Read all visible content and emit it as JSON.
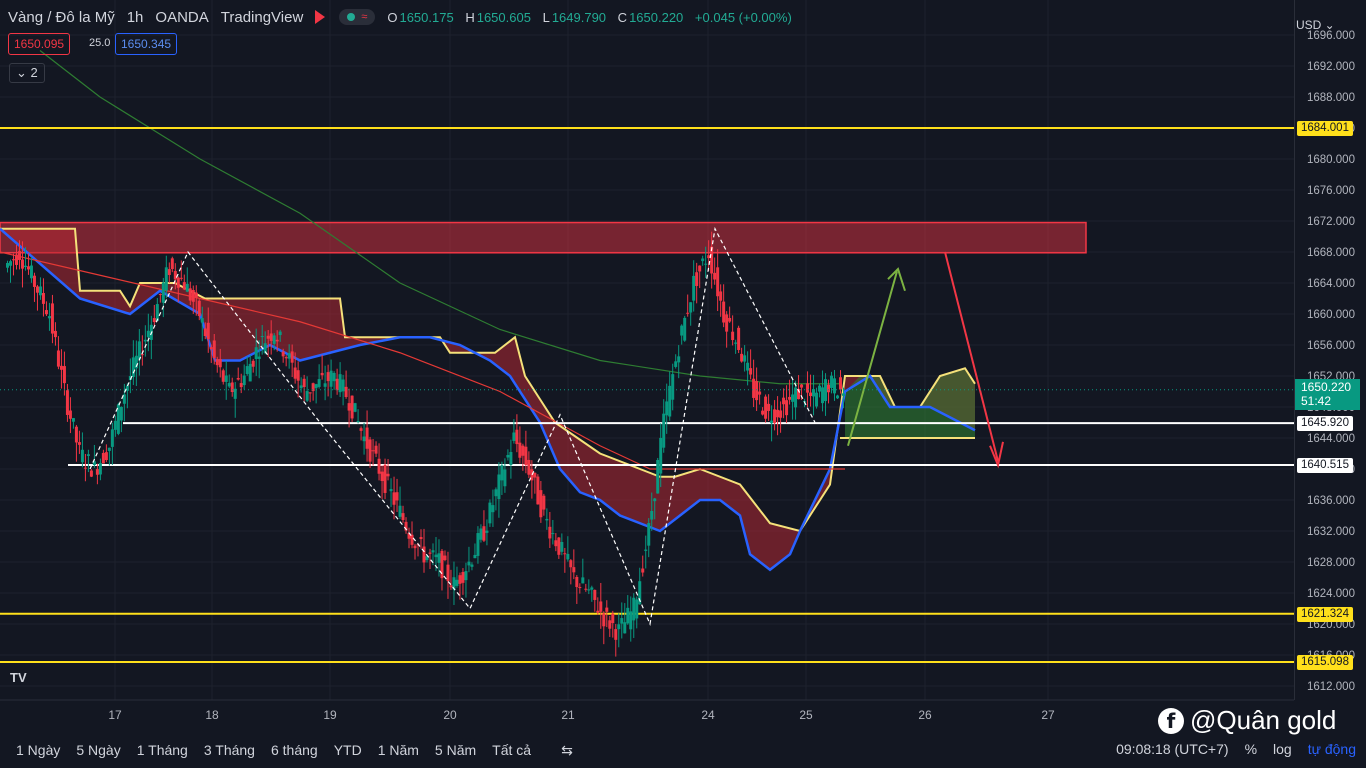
{
  "header": {
    "symbol": "Vàng / Đô la Mỹ",
    "interval": "1h",
    "broker": "OANDA",
    "platform": "TradingView",
    "ohlc": {
      "o_label": "O",
      "o": "1650.175",
      "h_label": "H",
      "h": "1650.605",
      "l_label": "L",
      "l": "1649.790",
      "c_label": "C",
      "c": "1650.220",
      "change": "+0.045 (+0.00%)"
    },
    "sell_price": "1650.095",
    "spread": "25.0",
    "buy_price": "1650.345",
    "indicator_count": "2",
    "currency": "USD"
  },
  "bottom_bar": {
    "periods": [
      "1 Ngày",
      "5 Ngày",
      "1 Tháng",
      "3 Tháng",
      "6 tháng",
      "YTD",
      "1 Năm",
      "5 Năm",
      "Tất cả"
    ],
    "clock": "09:08:18 (UTC+7)",
    "percent": "%",
    "log": "log",
    "auto": "tự động"
  },
  "watermark": "@Quân gold",
  "chart_data": {
    "type": "candlestick",
    "symbol": "XAUUSD",
    "ylim": [
      1610,
      1698
    ],
    "y_ticks": [
      "1612.000",
      "1616.000",
      "1620.000",
      "1624.000",
      "1628.000",
      "1632.000",
      "1636.000",
      "1640.000",
      "1644.000",
      "1648.000",
      "1652.000",
      "1656.000",
      "1660.000",
      "1664.000",
      "1668.000",
      "1672.000",
      "1676.000",
      "1680.000",
      "1684.000",
      "1688.000",
      "1692.000",
      "1696.000"
    ],
    "x_ticks": [
      "17",
      "18",
      "19",
      "20",
      "21",
      "24",
      "25",
      "26",
      "27"
    ],
    "last_price": "1650.220",
    "countdown": "51:42",
    "levels": [
      {
        "value": 1684.001,
        "label": "1684.001",
        "color": "#ffe01b"
      },
      {
        "value": 1645.92,
        "label": "1645.920",
        "color": "#ffffff"
      },
      {
        "value": 1640.515,
        "label": "1640.515",
        "color": "#ffffff"
      },
      {
        "value": 1621.324,
        "label": "1621.324",
        "color": "#ffe01b"
      },
      {
        "value": 1615.098,
        "label": "1615.098",
        "color": "#ffe01b"
      }
    ],
    "resistance_zone": [
      1667.9,
      1671.8
    ],
    "price_path": [
      [
        0,
        1666
      ],
      [
        1,
        1668
      ],
      [
        2,
        1664
      ],
      [
        3,
        1660
      ],
      [
        4,
        1650
      ],
      [
        5,
        1642
      ],
      [
        6,
        1640
      ],
      [
        7,
        1643
      ],
      [
        8,
        1650
      ],
      [
        9,
        1655
      ],
      [
        10,
        1660
      ],
      [
        11,
        1666
      ],
      [
        12,
        1664
      ],
      [
        13,
        1660
      ],
      [
        14,
        1654
      ],
      [
        15,
        1650
      ],
      [
        16,
        1652
      ],
      [
        17,
        1656
      ],
      [
        18,
        1658
      ],
      [
        19,
        1654
      ],
      [
        20,
        1650
      ],
      [
        21,
        1651
      ],
      [
        22,
        1652
      ],
      [
        23,
        1649
      ],
      [
        24,
        1644
      ],
      [
        25,
        1640
      ],
      [
        26,
        1636
      ],
      [
        27,
        1632
      ],
      [
        28,
        1629
      ],
      [
        29,
        1628
      ],
      [
        30,
        1625
      ],
      [
        31,
        1628
      ],
      [
        32,
        1632
      ],
      [
        33,
        1638
      ],
      [
        34,
        1644
      ],
      [
        35,
        1640
      ],
      [
        36,
        1634
      ],
      [
        37,
        1630
      ],
      [
        38,
        1626
      ],
      [
        39,
        1624
      ],
      [
        40,
        1621
      ],
      [
        41,
        1619
      ],
      [
        42,
        1622
      ],
      [
        43,
        1632
      ],
      [
        44,
        1646
      ],
      [
        45,
        1656
      ],
      [
        46,
        1664
      ],
      [
        47,
        1668
      ],
      [
        48,
        1660
      ],
      [
        49,
        1656
      ],
      [
        50,
        1650
      ],
      [
        51,
        1647
      ],
      [
        52,
        1648
      ],
      [
        53,
        1650
      ],
      [
        54,
        1649
      ],
      [
        55,
        1651
      ],
      [
        56,
        1650
      ]
    ]
  }
}
